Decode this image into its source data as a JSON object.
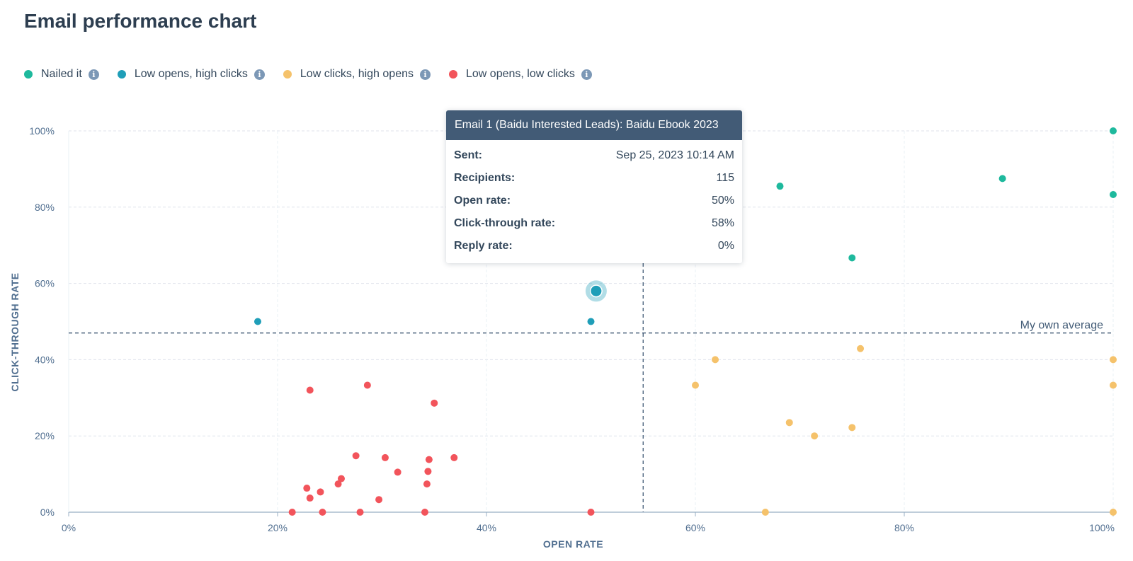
{
  "page_title": "Email performance chart",
  "legend": [
    {
      "label": "Nailed it",
      "color": "#1eb99d",
      "icon": "info-icon"
    },
    {
      "label": "Low opens, high clicks",
      "color": "#1f9eb8",
      "icon": "info-icon"
    },
    {
      "label": "Low clicks, high opens",
      "color": "#f5c26b",
      "icon": "info-icon"
    },
    {
      "label": "Low opens, low clicks",
      "color": "#f2545b",
      "icon": "info-icon"
    }
  ],
  "tooltip": {
    "title": "Email 1 (Baidu Interested Leads): Baidu Ebook 2023",
    "rows": [
      {
        "key": "Sent:",
        "value": "Sep 25, 2023 10:14 AM"
      },
      {
        "key": "Recipients:",
        "value": "115"
      },
      {
        "key": "Open rate:",
        "value": "50%"
      },
      {
        "key": "Click-through rate:",
        "value": "58%"
      },
      {
        "key": "Reply rate:",
        "value": "0%"
      }
    ]
  },
  "chart_data": {
    "type": "scatter",
    "xlabel": "OPEN RATE",
    "ylabel": "CLICK-THROUGH RATE",
    "xlim": [
      0,
      100
    ],
    "ylim": [
      0,
      100
    ],
    "x_ticks": [
      "0%",
      "20%",
      "40%",
      "60%",
      "80%",
      "100%"
    ],
    "y_ticks": [
      "0%",
      "20%",
      "40%",
      "60%",
      "80%",
      "100%"
    ],
    "grid": true,
    "reference_lines": {
      "x_average": 55,
      "y_average": 47,
      "label": "My own average"
    },
    "highlighted_point": {
      "x": 50.5,
      "y": 58,
      "series": "Low opens, high clicks"
    },
    "series": [
      {
        "name": "Nailed it",
        "color": "#1eb99d",
        "points": [
          {
            "x": 100,
            "y": 100
          },
          {
            "x": 89.4,
            "y": 87.5
          },
          {
            "x": 100,
            "y": 83.3
          },
          {
            "x": 68.1,
            "y": 85.5
          },
          {
            "x": 75,
            "y": 66.7
          }
        ]
      },
      {
        "name": "Low opens, high clicks",
        "color": "#1f9eb8",
        "points": [
          {
            "x": 18.1,
            "y": 50
          },
          {
            "x": 50,
            "y": 50
          },
          {
            "x": 50.5,
            "y": 58
          }
        ]
      },
      {
        "name": "Low clicks, high opens",
        "color": "#f5c26b",
        "points": [
          {
            "x": 61.9,
            "y": 40
          },
          {
            "x": 75.8,
            "y": 42.9
          },
          {
            "x": 100,
            "y": 40
          },
          {
            "x": 60,
            "y": 33.3
          },
          {
            "x": 100,
            "y": 33.3
          },
          {
            "x": 69,
            "y": 23.5
          },
          {
            "x": 75,
            "y": 22.2
          },
          {
            "x": 71.4,
            "y": 20
          },
          {
            "x": 66.7,
            "y": 0
          },
          {
            "x": 100,
            "y": 0
          }
        ]
      },
      {
        "name": "Low opens, low clicks",
        "color": "#f2545b",
        "points": [
          {
            "x": 28.6,
            "y": 33.3
          },
          {
            "x": 23.1,
            "y": 32
          },
          {
            "x": 35,
            "y": 28.6
          },
          {
            "x": 27.5,
            "y": 14.8
          },
          {
            "x": 30.3,
            "y": 14.3
          },
          {
            "x": 34.5,
            "y": 13.8
          },
          {
            "x": 36.9,
            "y": 14.3
          },
          {
            "x": 31.5,
            "y": 10.5
          },
          {
            "x": 34.4,
            "y": 10.7
          },
          {
            "x": 26.1,
            "y": 8.8
          },
          {
            "x": 25.8,
            "y": 7.4
          },
          {
            "x": 34.3,
            "y": 7.4
          },
          {
            "x": 22.8,
            "y": 6.3
          },
          {
            "x": 24.1,
            "y": 5.3
          },
          {
            "x": 23.1,
            "y": 3.7
          },
          {
            "x": 29.7,
            "y": 3.3
          },
          {
            "x": 21.4,
            "y": 0
          },
          {
            "x": 24.3,
            "y": 0
          },
          {
            "x": 27.9,
            "y": 0
          },
          {
            "x": 34.1,
            "y": 0
          },
          {
            "x": 50,
            "y": 0
          }
        ]
      }
    ]
  }
}
